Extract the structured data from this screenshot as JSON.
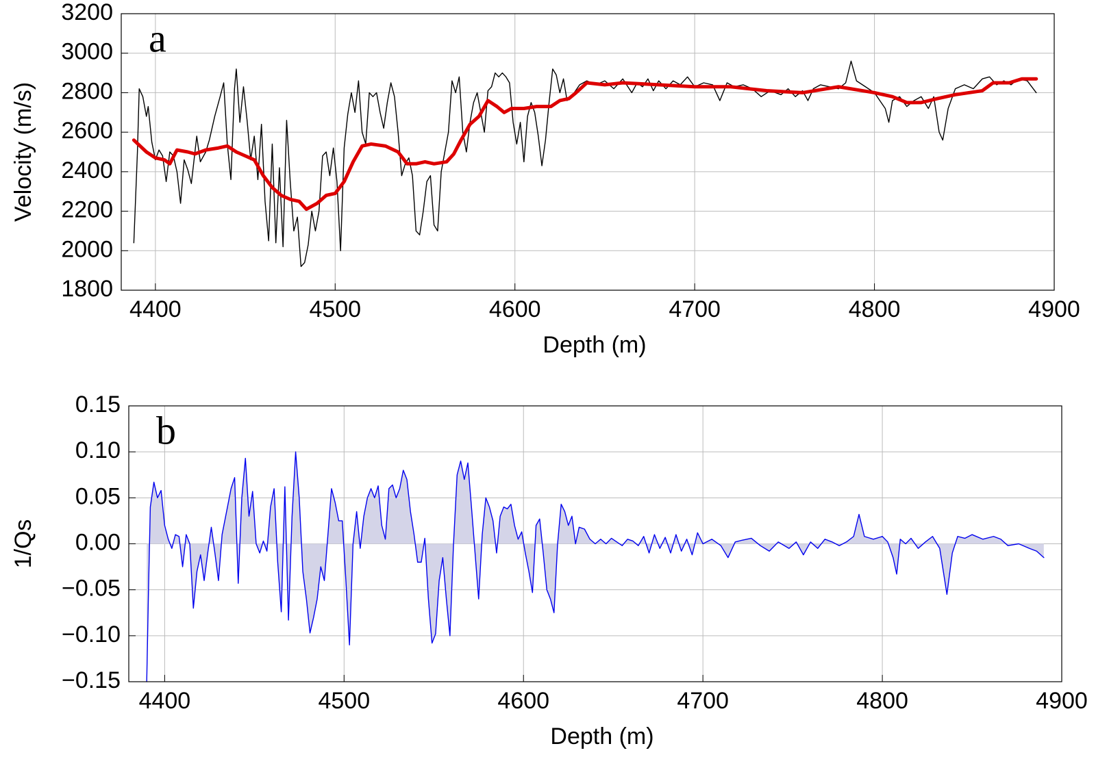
{
  "chart_data": [
    {
      "type": "line",
      "annotation": "a",
      "xlabel": "Depth (m)",
      "ylabel": "Velocity (m/s)",
      "xlim": [
        4381,
        4900
      ],
      "ylim": [
        1800,
        3200
      ],
      "xticks": [
        4400,
        4500,
        4600,
        4700,
        4800,
        4900
      ],
      "yticks": [
        1800,
        2000,
        2200,
        2400,
        2600,
        2800,
        3000,
        3200
      ],
      "grid": true,
      "series": [
        {
          "color": "#000000",
          "x": [
            4388,
            4390,
            4391,
            4393,
            4395,
            4396,
            4398,
            4400,
            4402,
            4404,
            4406,
            4408,
            4410,
            4412,
            4414,
            4416,
            4418,
            4420,
            4423,
            4425,
            4428,
            4430,
            4433,
            4436,
            4438,
            4440,
            4442,
            4444,
            4445,
            4447,
            4449,
            4451,
            4453,
            4455,
            4457,
            4459,
            4461,
            4463,
            4465,
            4467,
            4469,
            4471,
            4473,
            4475,
            4477,
            4479,
            4481,
            4483,
            4485,
            4487,
            4489,
            4491,
            4493,
            4495,
            4497,
            4499,
            4501,
            4503,
            4505,
            4507,
            4509,
            4511,
            4513,
            4515,
            4517,
            4519,
            4521,
            4523,
            4525,
            4527,
            4529,
            4531,
            4533,
            4535,
            4537,
            4539,
            4541,
            4543,
            4545,
            4547,
            4549,
            4551,
            4553,
            4555,
            4557,
            4559,
            4561,
            4563,
            4565,
            4567,
            4569,
            4571,
            4573,
            4575,
            4577,
            4579,
            4581,
            4583,
            4585,
            4587,
            4589,
            4591,
            4593,
            4595,
            4597,
            4599,
            4601,
            4603,
            4605,
            4607,
            4609,
            4611,
            4613,
            4615,
            4617,
            4619,
            4621,
            4623,
            4625,
            4627,
            4629,
            4631,
            4633,
            4636,
            4640,
            4645,
            4650,
            4655,
            4660,
            4665,
            4668,
            4671,
            4674,
            4677,
            4680,
            4684,
            4688,
            4692,
            4696,
            4700,
            4705,
            4710,
            4714,
            4718,
            4722,
            4727,
            4732,
            4737,
            4742,
            4748,
            4752,
            4756,
            4760,
            4763,
            4766,
            4770,
            4775,
            4780,
            4784,
            4787,
            4790,
            4795,
            4800,
            4803,
            4806,
            4808,
            4810,
            4814,
            4818,
            4822,
            4826,
            4830,
            4833,
            4836,
            4838,
            4841,
            4845,
            4850,
            4855,
            4860,
            4864,
            4868,
            4872,
            4876,
            4880,
            4885,
            4890
          ],
          "values": [
            2040,
            2500,
            2820,
            2780,
            2680,
            2730,
            2550,
            2460,
            2510,
            2480,
            2350,
            2500,
            2480,
            2400,
            2240,
            2460,
            2410,
            2340,
            2580,
            2450,
            2500,
            2560,
            2680,
            2780,
            2850,
            2540,
            2360,
            2820,
            2920,
            2650,
            2830,
            2660,
            2460,
            2580,
            2360,
            2640,
            2250,
            2050,
            2540,
            2040,
            2420,
            2020,
            2660,
            2350,
            2100,
            2170,
            1920,
            1940,
            2030,
            2200,
            2100,
            2200,
            2480,
            2500,
            2380,
            2520,
            2350,
            2000,
            2520,
            2690,
            2800,
            2700,
            2860,
            2600,
            2540,
            2800,
            2780,
            2800,
            2700,
            2620,
            2750,
            2850,
            2780,
            2600,
            2380,
            2440,
            2470,
            2380,
            2100,
            2080,
            2200,
            2350,
            2380,
            2130,
            2100,
            2400,
            2500,
            2600,
            2860,
            2800,
            2880,
            2600,
            2500,
            2650,
            2750,
            2800,
            2700,
            2600,
            2810,
            2830,
            2900,
            2880,
            2900,
            2880,
            2850,
            2650,
            2540,
            2650,
            2450,
            2680,
            2750,
            2700,
            2580,
            2430,
            2560,
            2750,
            2920,
            2890,
            2800,
            2870,
            2760,
            2780,
            2800,
            2840,
            2860,
            2840,
            2860,
            2820,
            2870,
            2800,
            2850,
            2830,
            2870,
            2810,
            2860,
            2820,
            2860,
            2840,
            2880,
            2830,
            2850,
            2840,
            2760,
            2850,
            2830,
            2840,
            2820,
            2780,
            2810,
            2790,
            2820,
            2780,
            2810,
            2760,
            2820,
            2840,
            2830,
            2820,
            2850,
            2960,
            2860,
            2830,
            2800,
            2760,
            2720,
            2650,
            2760,
            2780,
            2730,
            2760,
            2780,
            2720,
            2780,
            2600,
            2560,
            2720,
            2820,
            2840,
            2820,
            2870,
            2880,
            2840,
            2860,
            2840,
            2870,
            2860,
            2800
          ]
        },
        {
          "color": "#dd0000",
          "x": [
            4388,
            4395,
            4400,
            4405,
            4408,
            4412,
            4418,
            4422,
            4428,
            4435,
            4440,
            4445,
            4450,
            4455,
            4460,
            4465,
            4470,
            4475,
            4480,
            4484,
            4490,
            4495,
            4500,
            4505,
            4510,
            4515,
            4520,
            4528,
            4535,
            4540,
            4545,
            4550,
            4555,
            4562,
            4566,
            4570,
            4575,
            4580,
            4585,
            4590,
            4594,
            4598,
            4605,
            4612,
            4620,
            4625,
            4630,
            4634,
            4640,
            4650,
            4660,
            4680,
            4700,
            4720,
            4740,
            4760,
            4780,
            4800,
            4810,
            4818,
            4826,
            4835,
            4845,
            4860,
            4866,
            4875,
            4882,
            4890
          ],
          "values": [
            2560,
            2500,
            2470,
            2460,
            2440,
            2510,
            2500,
            2490,
            2510,
            2520,
            2530,
            2500,
            2480,
            2460,
            2380,
            2320,
            2280,
            2260,
            2250,
            2210,
            2240,
            2280,
            2290,
            2350,
            2450,
            2530,
            2540,
            2530,
            2500,
            2440,
            2440,
            2450,
            2440,
            2450,
            2490,
            2560,
            2640,
            2680,
            2760,
            2730,
            2700,
            2720,
            2720,
            2730,
            2730,
            2760,
            2770,
            2800,
            2850,
            2840,
            2850,
            2840,
            2830,
            2830,
            2810,
            2800,
            2830,
            2800,
            2780,
            2750,
            2750,
            2770,
            2790,
            2810,
            2850,
            2850,
            2870,
            2870
          ]
        }
      ]
    },
    {
      "type": "area",
      "annotation": "b",
      "xlabel": "Depth (m)",
      "ylabel": "1/Qs",
      "xlim": [
        4380,
        4900
      ],
      "ylim": [
        -0.15,
        0.15
      ],
      "xticks": [
        4400,
        4500,
        4600,
        4700,
        4800,
        4900
      ],
      "yticks": [
        {
          "value": -0.15,
          "label": "−0.15"
        },
        {
          "value": -0.1,
          "label": "−0.10"
        },
        {
          "value": -0.05,
          "label": "−0.05"
        },
        {
          "value": 0,
          "label": "0.00"
        },
        {
          "value": 0.05,
          "label": "0.05"
        },
        {
          "value": 0.1,
          "label": "0.10"
        },
        0.15
      ],
      "grid": true,
      "fill_color": "#d4d4e8",
      "series": [
        {
          "color": "#0000ee",
          "x": [
            4390,
            4391,
            4392,
            4394,
            4396,
            4398,
            4400,
            4402,
            4404,
            4406,
            4408,
            4410,
            4412,
            4414,
            4416,
            4418,
            4420,
            4422,
            4424,
            4426,
            4428,
            4430,
            4432,
            4434,
            4437,
            4439,
            4441,
            4443,
            4445,
            4447,
            4449,
            4451,
            4453,
            4455,
            4457,
            4459,
            4461,
            4463,
            4465,
            4467,
            4469,
            4471,
            4473,
            4475,
            4477,
            4479,
            4481,
            4483,
            4485,
            4487,
            4489,
            4491,
            4493,
            4495,
            4497,
            4499,
            4501,
            4503,
            4505,
            4507,
            4509,
            4511,
            4513,
            4515,
            4517,
            4519,
            4521,
            4523,
            4525,
            4527,
            4529,
            4531,
            4533,
            4535,
            4537,
            4539,
            4541,
            4543,
            4545,
            4547,
            4549,
            4551,
            4553,
            4555,
            4557,
            4559,
            4561,
            4563,
            4565,
            4567,
            4569,
            4571,
            4573,
            4575,
            4577,
            4579,
            4581,
            4583,
            4585,
            4587,
            4589,
            4591,
            4593,
            4595,
            4597,
            4599,
            4601,
            4603,
            4605,
            4607,
            4609,
            4611,
            4613,
            4615,
            4617,
            4619,
            4621,
            4623,
            4625,
            4627,
            4629,
            4631,
            4634,
            4637,
            4640,
            4643,
            4646,
            4649,
            4652,
            4655,
            4658,
            4661,
            4664,
            4667,
            4670,
            4673,
            4676,
            4679,
            4682,
            4685,
            4688,
            4691,
            4694,
            4697,
            4700,
            4705,
            4710,
            4714,
            4718,
            4722,
            4727,
            4732,
            4737,
            4742,
            4748,
            4752,
            4756,
            4760,
            4764,
            4768,
            4772,
            4776,
            4780,
            4784,
            4787,
            4790,
            4795,
            4800,
            4803,
            4806,
            4808,
            4810,
            4813,
            4816,
            4820,
            4824,
            4828,
            4832,
            4836,
            4839,
            4842,
            4846,
            4850,
            4856,
            4862,
            4866,
            4870,
            4876,
            4882,
            4886,
            4890
          ],
          "values": [
            -0.15,
            -0.05,
            0.04,
            0.067,
            0.05,
            0.058,
            0.02,
            0.005,
            -0.005,
            0.01,
            0.008,
            -0.025,
            0.01,
            0,
            -0.07,
            -0.03,
            -0.012,
            -0.04,
            -0.01,
            0.018,
            -0.01,
            -0.04,
            0.01,
            0.03,
            0.06,
            0.072,
            -0.043,
            0.05,
            0.093,
            0.03,
            0.057,
            0,
            -0.01,
            0.003,
            -0.008,
            0.04,
            0.06,
            -0.02,
            -0.074,
            0.062,
            -0.083,
            0.03,
            0.1,
            0.05,
            -0.03,
            -0.06,
            -0.097,
            -0.08,
            -0.06,
            -0.025,
            -0.04,
            0.01,
            0.06,
            0.045,
            0.025,
            0.025,
            -0.04,
            -0.11,
            0,
            0.035,
            -0.005,
            0.03,
            0.05,
            0.06,
            0.05,
            0.063,
            0.02,
            0.005,
            0.06,
            0.064,
            0.05,
            0.06,
            0.08,
            0.07,
            0.035,
            0.01,
            -0.02,
            -0.02,
            0.006,
            -0.06,
            -0.108,
            -0.098,
            -0.04,
            -0.015,
            -0.06,
            -0.1,
            0,
            0.075,
            0.09,
            0.07,
            0.088,
            0.04,
            -0.01,
            -0.06,
            0.01,
            0.05,
            0.04,
            0.025,
            -0.01,
            0.03,
            0.04,
            0.038,
            0.043,
            0.02,
            0.005,
            0.013,
            -0.01,
            -0.03,
            -0.053,
            0.02,
            0.027,
            -0.01,
            -0.05,
            -0.06,
            -0.075,
            0,
            0.043,
            0.035,
            0.02,
            0.03,
            0,
            0.018,
            0.016,
            0.005,
            0,
            0.005,
            0,
            0.006,
            0.002,
            -0.002,
            0.005,
            0.003,
            -0.002,
            0.008,
            -0.01,
            0.01,
            -0.005,
            0.007,
            -0.01,
            0.01,
            -0.008,
            0.005,
            -0.012,
            0.012,
            0,
            0.005,
            -0.002,
            -0.015,
            0.002,
            0.004,
            0.006,
            -0.002,
            -0.008,
            0.002,
            -0.005,
            0.002,
            -0.012,
            0.002,
            -0.005,
            0.005,
            0.002,
            -0.002,
            0.002,
            0.008,
            0.032,
            0.008,
            0.005,
            0.008,
            0.002,
            -0.015,
            -0.033,
            0.005,
            0,
            0.006,
            -0.005,
            0.002,
            0.008,
            -0.005,
            -0.055,
            -0.01,
            0.008,
            0.006,
            0.01,
            0.005,
            0.008,
            0.005,
            -0.002,
            0,
            -0.005,
            -0.008,
            -0.015
          ]
        }
      ]
    }
  ]
}
